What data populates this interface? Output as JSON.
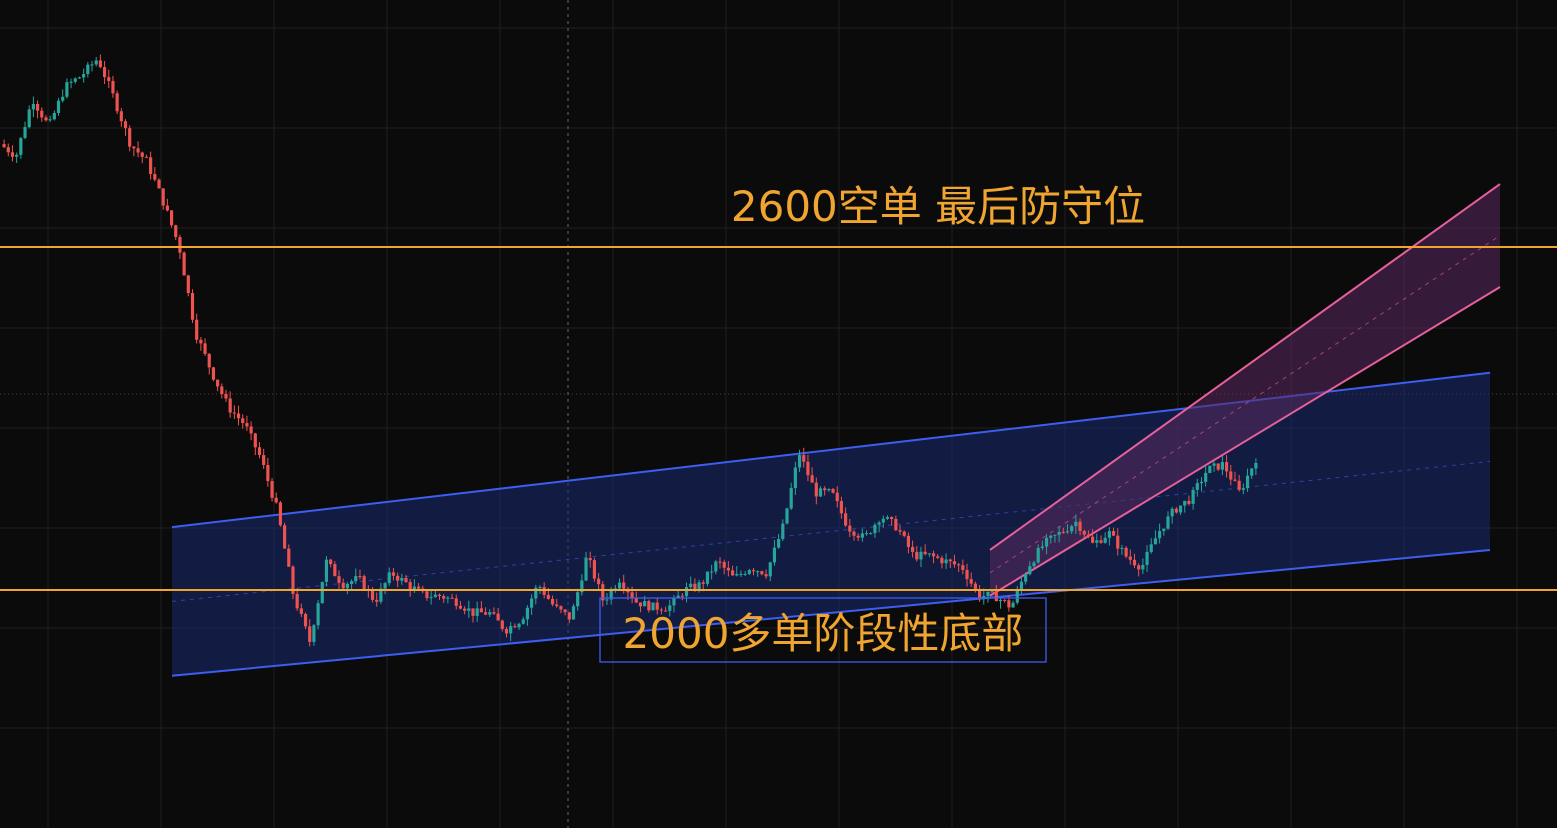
{
  "chart_data": {
    "type": "candlestick",
    "title": "",
    "xlabel": "",
    "ylabel": "",
    "grid": true,
    "legend": "none",
    "colors": {
      "background": "#0b0b0c",
      "grid": "#1f1f22",
      "up_candle": "#26a69a",
      "down_candle": "#ef5350",
      "level_line": "#f0a530",
      "wide_channel": "#3d5ef0",
      "wide_channel_fill": "#1a2a6e",
      "rising_channel": "#e8609a",
      "rising_channel_fill": "#5a2a5e",
      "annotation_box": "#3d5ef0",
      "annotation_text": "#f0a530",
      "crosshair": "#6a6a70"
    },
    "price_path": [
      2780,
      2760,
      2860,
      2810,
      2880,
      2900,
      2930,
      2860,
      2780,
      2750,
      2680,
      2600,
      2450,
      2380,
      2320,
      2290,
      2230,
      2140,
      1990,
      1910,
      2050,
      2010,
      2020,
      1980,
      2030,
      2010,
      1990,
      1990,
      1980,
      1960,
      1960,
      1930,
      1950,
      2010,
      1970,
      1950,
      2060,
      1980,
      2020,
      1980,
      1970,
      1970,
      2000,
      2010,
      2050,
      2020,
      2040,
      2030,
      2110,
      2240,
      2170,
      2170,
      2110,
      2090,
      2130,
      2110,
      2060,
      2060,
      2050,
      2040,
      1990,
      1990,
      1970,
      2040,
      2080,
      2100,
      2120,
      2080,
      2100,
      2060,
      2040,
      2100,
      2140,
      2160,
      2210,
      2220,
      2170,
      2230
    ],
    "levels": [
      {
        "price": 2600,
        "label": "2600空单 最后防守位"
      },
      {
        "price": 2000,
        "label": "2000多单阶段性底部"
      }
    ],
    "channels": [
      {
        "name": "wide_channel",
        "upper": [
          [
            0,
            2110
          ],
          [
            1,
            2380
          ]
        ],
        "lower": [
          [
            0,
            1850
          ],
          [
            1,
            2070
          ]
        ]
      },
      {
        "name": "rising_channel",
        "upper": [
          [
            0,
            2070
          ],
          [
            1,
            2710
          ]
        ],
        "lower": [
          [
            0,
            1990
          ],
          [
            1,
            2530
          ]
        ]
      }
    ]
  }
}
